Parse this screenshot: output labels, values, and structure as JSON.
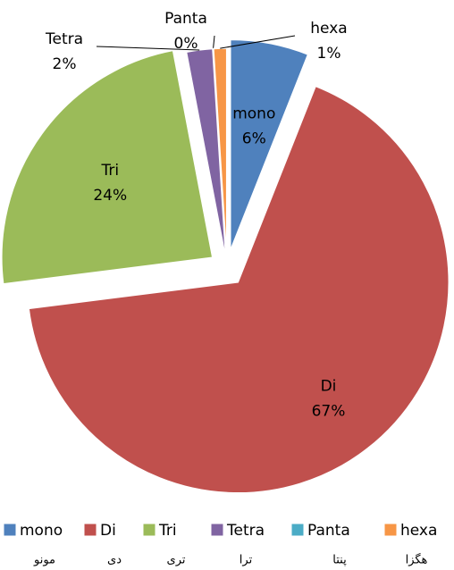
{
  "chart_data": {
    "type": "pie",
    "categories": [
      "mono",
      "Di",
      "Tri",
      "Tetra",
      "Panta",
      "hexa"
    ],
    "values": [
      6,
      67,
      24,
      2,
      0,
      1
    ],
    "value_labels": [
      "6%",
      "67%",
      "24%",
      "2%",
      "0%",
      "1%"
    ],
    "colors": [
      "#4f81bd",
      "#c0504d",
      "#9bbb59",
      "#8064a2",
      "#4bacc6",
      "#f79646"
    ],
    "legend": "bottom",
    "legend_translations": [
      "مونو",
      "دی",
      "تری",
      "ترا",
      "پنتا",
      "هگزا"
    ]
  }
}
